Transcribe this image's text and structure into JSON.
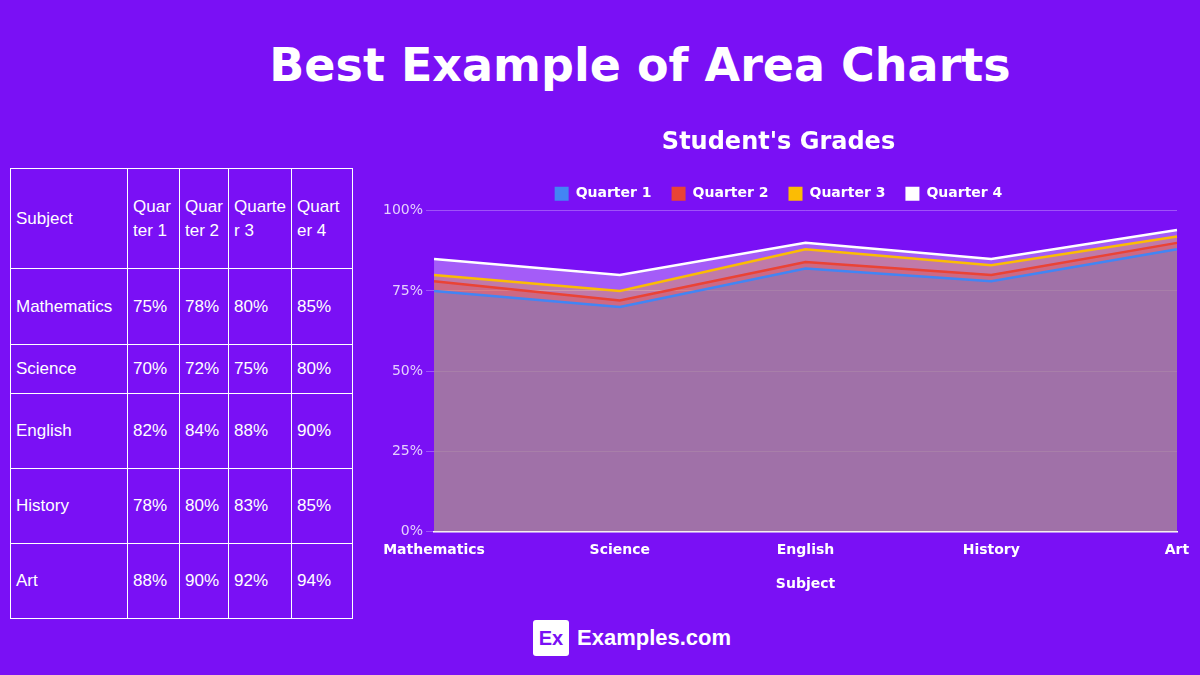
{
  "header": {
    "title": "Best Example of Area Charts"
  },
  "table": {
    "header": [
      "Subject",
      "Quarter 1",
      "Quarter 2",
      "Quarter 3",
      "Quarter 4"
    ],
    "rows": [
      [
        "Mathematics",
        "75%",
        "78%",
        "80%",
        "85%"
      ],
      [
        "Science",
        "70%",
        "72%",
        "75%",
        "80%"
      ],
      [
        "English",
        "82%",
        "84%",
        "88%",
        "90%"
      ],
      [
        "History",
        "78%",
        "80%",
        "83%",
        "85%"
      ],
      [
        "Art",
        "88%",
        "90%",
        "92%",
        "94%"
      ]
    ]
  },
  "chart_data": {
    "type": "area",
    "title": "Student's Grades",
    "x_label": "Subject",
    "categories": [
      "Mathematics",
      "Science",
      "English",
      "History",
      "Art"
    ],
    "series": [
      {
        "name": "Quarter 1",
        "color": "#4285f4",
        "values": [
          75,
          70,
          82,
          78,
          88
        ]
      },
      {
        "name": "Quarter 2",
        "color": "#ea4335",
        "values": [
          78,
          72,
          84,
          80,
          90
        ]
      },
      {
        "name": "Quarter 3",
        "color": "#fbbc04",
        "values": [
          80,
          75,
          88,
          83,
          92
        ]
      },
      {
        "name": "Quarter 4",
        "color": "#ffffff",
        "values": [
          85,
          80,
          90,
          85,
          94
        ]
      }
    ],
    "ylim": [
      0,
      100
    ],
    "yticks": [
      {
        "value": 0,
        "label": "0%"
      },
      {
        "value": 25,
        "label": "25%"
      },
      {
        "value": 50,
        "label": "50%"
      },
      {
        "value": 75,
        "label": "75%"
      },
      {
        "value": 100,
        "label": "100%"
      }
    ],
    "grid": true,
    "legend": "top",
    "stacked": false,
    "marker": "none"
  },
  "footer": {
    "logo": "Ex",
    "text": "Examples.com"
  }
}
